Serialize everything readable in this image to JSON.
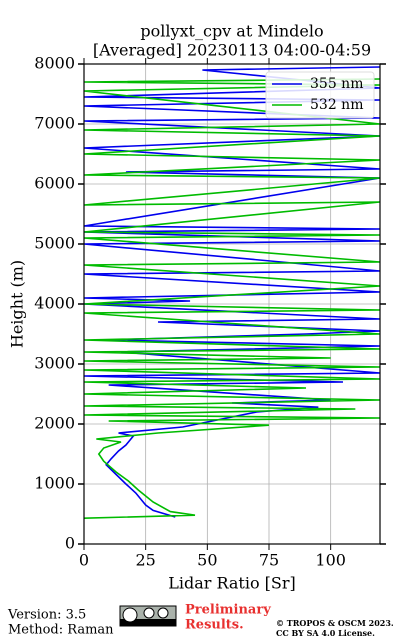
{
  "chart_data": {
    "type": "line",
    "title": "pollyxt_cpv at Mindelo",
    "subtitle": "[Averaged] 20230113 04:00-04:59",
    "x_label": "Lidar Ratio [Sr]",
    "y_label": "Height (m)",
    "xlim": [
      0,
      120
    ],
    "xticks": [
      0,
      25,
      50,
      75,
      100
    ],
    "ylim": [
      0,
      8000
    ],
    "yticks": [
      0,
      1000,
      2000,
      3000,
      4000,
      5000,
      6000,
      7000,
      8000
    ],
    "grid": true,
    "legend": "upper right",
    "series": [
      {
        "name": "355 nm",
        "color": "#0000ee",
        "x": [
          37,
          28,
          25,
          21,
          17,
          12,
          9,
          11,
          14,
          17,
          20,
          14,
          40,
          70,
          95,
          60,
          100,
          10,
          105,
          0,
          120,
          15,
          120,
          10,
          90,
          120,
          30,
          120,
          0,
          43,
          0,
          120,
          0,
          120,
          0,
          120,
          0,
          120,
          0,
          120,
          17,
          120,
          0,
          120,
          0,
          120,
          0,
          120,
          0,
          120,
          48,
          120
        ],
        "values": [
          450,
          560,
          650,
          850,
          1000,
          1200,
          1320,
          1420,
          1550,
          1650,
          1800,
          1850,
          1950,
          2200,
          2280,
          2350,
          2400,
          2650,
          2700,
          2800,
          2850,
          3200,
          3300,
          3400,
          3500,
          3550,
          3700,
          3750,
          4000,
          4050,
          4100,
          4200,
          4500,
          4550,
          5000,
          5050,
          5200,
          5250,
          5300,
          6100,
          6200,
          6250,
          6600,
          6800,
          7050,
          7100,
          7300,
          7400,
          7450,
          7600,
          7900,
          7950
        ]
      },
      {
        "name": "532 nm",
        "color": "#00bb00",
        "x": [
          0,
          45,
          35,
          28,
          22,
          18,
          13,
          8,
          6,
          8,
          15,
          5,
          30,
          75,
          10,
          120,
          0,
          110,
          0,
          120,
          0,
          90,
          0,
          120,
          0,
          120,
          0,
          100,
          0,
          120,
          0,
          120,
          0,
          120,
          0,
          120,
          0,
          120,
          0,
          120,
          0,
          120,
          0,
          120,
          0,
          120,
          0,
          120,
          0,
          120,
          0,
          120,
          0,
          120
        ],
        "values": [
          430,
          480,
          540,
          700,
          900,
          1050,
          1200,
          1380,
          1500,
          1600,
          1700,
          1750,
          1850,
          1980,
          2050,
          2100,
          2150,
          2250,
          2300,
          2400,
          2500,
          2600,
          2700,
          2750,
          2900,
          2950,
          3050,
          3100,
          3200,
          3250,
          3400,
          3500,
          3850,
          3900,
          4000,
          4300,
          4650,
          4700,
          5100,
          5150,
          5200,
          5700,
          5650,
          6100,
          6150,
          6400,
          6500,
          6800,
          6900,
          7000,
          7550,
          7650,
          7700,
          7750
        ]
      }
    ],
    "annotations": {
      "version": "Version: 3.5",
      "method": "Method: Raman",
      "preliminary": "Preliminary",
      "results": "Results.",
      "copyright": "© TROPOS & OSCM 2023.",
      "license": "CC BY SA 4.0 License."
    }
  }
}
